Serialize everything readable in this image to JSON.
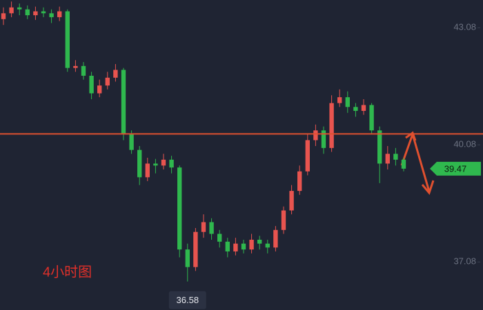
{
  "chart_data": {
    "type": "candlestick",
    "annotation": "4小时图",
    "open": [
      43.3,
      43.45,
      43.6,
      43.55,
      43.4,
      43.5,
      43.45,
      43.35,
      43.5,
      42.05,
      42.1,
      41.85,
      41.4,
      41.6,
      41.8,
      42.0,
      40.35,
      39.95,
      39.25,
      39.6,
      39.55,
      39.7,
      39.5,
      37.4,
      36.95,
      37.85,
      38.1,
      37.8,
      37.6,
      37.35,
      37.55,
      37.4,
      37.65,
      37.55,
      37.45,
      37.9,
      38.4,
      38.9,
      39.4,
      40.2,
      40.45,
      40.0,
      41.15,
      41.3,
      41.05,
      40.95,
      41.1,
      40.45,
      39.6,
      39.85,
      39.7
    ],
    "high": [
      43.6,
      43.75,
      43.7,
      43.65,
      43.62,
      43.6,
      43.55,
      43.62,
      43.55,
      42.25,
      42.2,
      41.95,
      41.75,
      41.95,
      42.15,
      42.05,
      40.45,
      40.05,
      39.75,
      39.72,
      39.85,
      39.8,
      39.55,
      37.55,
      37.95,
      38.3,
      38.2,
      37.9,
      37.7,
      37.7,
      37.65,
      37.8,
      37.75,
      37.65,
      38.0,
      38.5,
      39.05,
      39.55,
      40.35,
      40.6,
      40.55,
      41.35,
      41.5,
      41.45,
      41.15,
      41.25,
      41.15,
      40.55,
      40.05,
      40.0,
      39.75
    ],
    "low": [
      43.15,
      43.35,
      43.4,
      43.3,
      43.28,
      43.35,
      43.2,
      43.25,
      41.95,
      41.95,
      41.75,
      41.25,
      41.3,
      41.5,
      41.7,
      40.2,
      39.85,
      39.05,
      39.15,
      39.35,
      39.45,
      39.35,
      37.2,
      36.58,
      36.85,
      37.7,
      37.65,
      37.45,
      37.2,
      37.25,
      37.3,
      37.3,
      37.4,
      37.3,
      37.35,
      37.8,
      38.3,
      38.8,
      39.3,
      40.05,
      39.85,
      39.9,
      41.05,
      40.9,
      40.8,
      40.85,
      40.35,
      39.1,
      39.45,
      39.55,
      39.4
    ],
    "close": [
      43.45,
      43.6,
      43.55,
      43.4,
      43.5,
      43.45,
      43.35,
      43.5,
      42.05,
      42.1,
      41.85,
      41.4,
      41.6,
      41.8,
      42.0,
      40.35,
      39.95,
      39.25,
      39.6,
      39.55,
      39.7,
      39.5,
      37.4,
      36.95,
      37.85,
      38.1,
      37.8,
      37.6,
      37.35,
      37.55,
      37.4,
      37.65,
      37.55,
      37.45,
      37.9,
      38.4,
      38.9,
      39.4,
      40.2,
      40.45,
      40.0,
      41.15,
      41.3,
      41.05,
      40.95,
      41.1,
      40.45,
      39.6,
      39.85,
      39.7,
      39.47
    ],
    "up_color": "#e8544f",
    "down_color": "#2fb84e",
    "ylim": [
      35.85,
      43.79
    ],
    "yticks": [
      37.08,
      40.08,
      43.08
    ],
    "hline": {
      "value": 40.36,
      "color": "#e0502f"
    },
    "last_price": 39.47,
    "low_label": 36.58
  }
}
